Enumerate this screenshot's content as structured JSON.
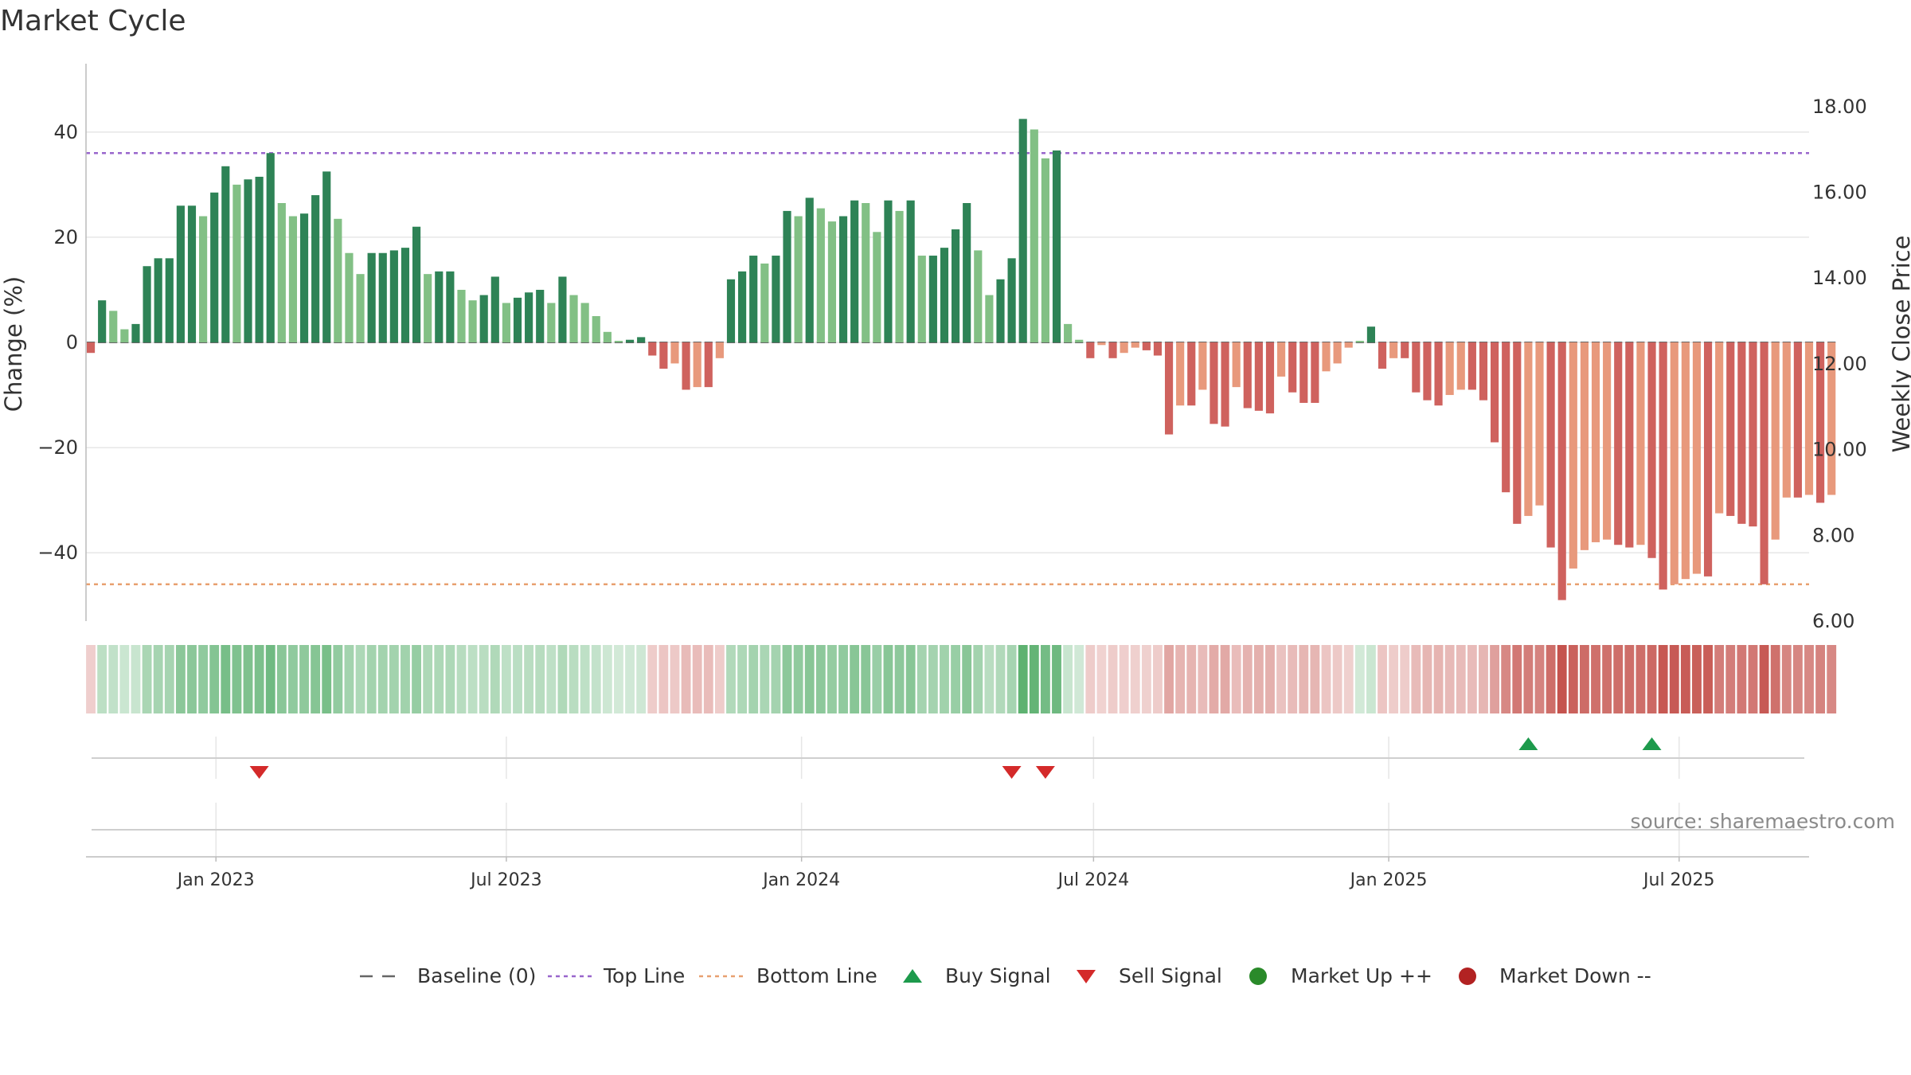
{
  "chart_data": {
    "type": "bar",
    "title": "Market Cycle",
    "ylabel": "Change (%)",
    "ylabel_right": "Weekly Close Price",
    "ylim": [
      -53,
      53
    ],
    "yticks": [
      40,
      20,
      0,
      -20,
      -40
    ],
    "ytick_labels": [
      "40",
      "20",
      "0",
      "−20",
      "−40"
    ],
    "y2lim": [
      6.0,
      19.0
    ],
    "y2ticks": [
      18,
      16,
      14,
      12,
      10,
      8,
      6
    ],
    "y2tick_labels": [
      "18.00",
      "16.00",
      "14.00",
      "12.00",
      "10.00",
      "8.00",
      "6.00"
    ],
    "xlim": [
      "2022-10-12",
      "2025-09-20"
    ],
    "xticks": [
      "2023-01-01",
      "2023-07-01",
      "2024-01-01",
      "2024-07-01",
      "2025-01-01",
      "2025-07-01"
    ],
    "xtick_labels": [
      "Jan 2023",
      "Jul 2023",
      "Jan 2024",
      "Jul 2024",
      "Jan 2025",
      "Jul 2025"
    ],
    "start_week": "2022-10-15",
    "week_step_days": 7,
    "top_line": 36,
    "bottom_line": -46,
    "values": [
      -2,
      8,
      6,
      2.5,
      3.5,
      14.5,
      16,
      16,
      26,
      26,
      24,
      28.5,
      33.5,
      30,
      31,
      31.5,
      36,
      26.5,
      24,
      24.5,
      28,
      32.5,
      23.5,
      17,
      13,
      17,
      17,
      17.5,
      18,
      22,
      13,
      13.5,
      13.5,
      10,
      8,
      9,
      12.5,
      7.5,
      8.5,
      9.5,
      10,
      7.5,
      12.5,
      9,
      7.5,
      5,
      2,
      0.3,
      0.5,
      1,
      -2.5,
      -5,
      -4,
      -9,
      -8.5,
      -8.5,
      -3,
      12,
      13.5,
      16.5,
      15,
      16.5,
      25,
      24,
      27.5,
      25.5,
      23,
      24,
      27,
      26.5,
      21,
      27,
      25,
      27,
      16.5,
      16.5,
      18,
      21.5,
      26.5,
      17.5,
      9,
      12,
      16,
      42.5,
      40.5,
      35,
      36.5,
      3.5,
      0.5,
      -3,
      -0.5,
      -3,
      -2,
      -1,
      -1.5,
      -2.5,
      -17.5,
      -12,
      -12,
      -9,
      -15.5,
      -16,
      -8.5,
      -12.5,
      -13,
      -13.5,
      -6.5,
      -9.5,
      -11.5,
      -11.5,
      -5.5,
      -4,
      -1,
      0.3,
      3,
      -5,
      -3,
      -3,
      -9.5,
      -11,
      -12,
      -10,
      -9,
      -9,
      -11,
      -19,
      -28.5,
      -34.5,
      -33,
      -31,
      -39,
      -49,
      -43,
      -39.5,
      -38,
      -37.5,
      -38.5,
      -39,
      -38.5,
      -41,
      -47,
      -46,
      -45,
      -44,
      -44.5,
      -32.5,
      -33,
      -34.5,
      -35,
      -46,
      -37.5,
      -29.5,
      -29.5,
      -29,
      -30.5,
      -29
    ],
    "buy_signals": [
      "2025-03-29",
      "2025-06-14"
    ],
    "sell_signals": [
      "2023-01-28",
      "2024-05-11",
      "2024-06-01"
    ],
    "legend": [
      "Baseline (0)",
      "Top Line",
      "Bottom Line",
      "Buy Signal",
      "Sell Signal",
      "Market Up ++",
      "Market Down --"
    ],
    "legend_placement": "bottom-center",
    "grid": true,
    "source": "source: sharemaestro.com"
  },
  "colors": {
    "up_dark": "#2e8356",
    "up_light": "#82c085",
    "down_dark": "#cf625e",
    "down_light": "#e8997c",
    "top_line": "#9966cc",
    "bottom_line": "#e8a070",
    "buy_signal": "#1d9a4c",
    "sell_signal": "#d42a2a",
    "market_up_dot": "#2a8a2a",
    "market_down_dot": "#b22222",
    "baseline": "#666666",
    "grid": "#e6e6e6",
    "axis": "#bbbbbb",
    "heat_pos": "#4aa860",
    "heat_neg": "#c4504a"
  }
}
